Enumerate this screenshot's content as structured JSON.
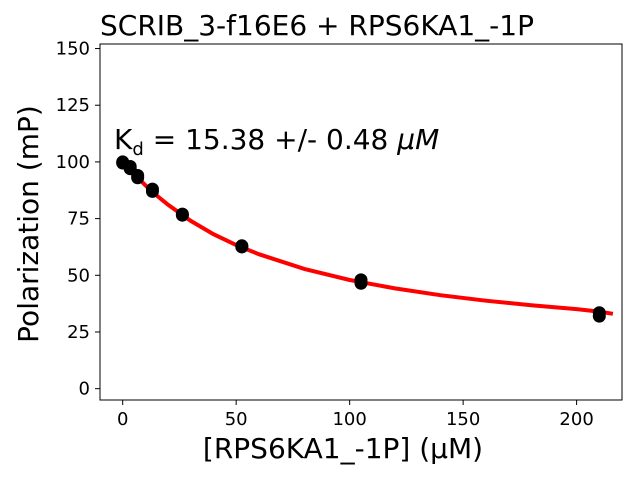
{
  "chart_data": {
    "type": "scatter",
    "title": "SCRIB_3-f16E6 + RPS6KA1_-1P",
    "xlabel": "[RPS6KA1_-1P] (μM)",
    "ylabel": "Polarization (mP)",
    "xlim": [
      -10,
      220
    ],
    "ylim": [
      -5,
      152
    ],
    "xticks": [
      0,
      50,
      100,
      150,
      200
    ],
    "yticks": [
      0,
      25,
      50,
      75,
      100,
      125,
      150
    ],
    "grid": false,
    "annotation": {
      "prefix": "K",
      "subscript": "d",
      "text": " = 15.38 +/- 0.48 ",
      "unit": "μM"
    },
    "points": [
      {
        "x": 0,
        "y": 100
      },
      {
        "x": 0,
        "y": 99.5
      },
      {
        "x": 3.3,
        "y": 98
      },
      {
        "x": 3.3,
        "y": 97
      },
      {
        "x": 6.6,
        "y": 94
      },
      {
        "x": 6.6,
        "y": 93
      },
      {
        "x": 13.1,
        "y": 88
      },
      {
        "x": 13.1,
        "y": 87
      },
      {
        "x": 26.3,
        "y": 77
      },
      {
        "x": 26.3,
        "y": 76.5
      },
      {
        "x": 52.5,
        "y": 63
      },
      {
        "x": 52.5,
        "y": 62.5
      },
      {
        "x": 105,
        "y": 48
      },
      {
        "x": 105,
        "y": 46.5
      },
      {
        "x": 210,
        "y": 33.5
      },
      {
        "x": 210,
        "y": 32
      }
    ],
    "fit": {
      "x": [
        0,
        5,
        10,
        15,
        20,
        30,
        40,
        50,
        60,
        80,
        100,
        120,
        140,
        160,
        180,
        200,
        210,
        216
      ],
      "y": [
        100,
        94.8,
        89.7,
        85.2,
        81.1,
        74.0,
        68.1,
        63.3,
        59.3,
        52.8,
        47.9,
        44.2,
        41.2,
        38.8,
        36.8,
        35.1,
        34.0,
        33.0
      ]
    },
    "colors": {
      "fit": "#ff0000",
      "points": "#000000"
    }
  }
}
